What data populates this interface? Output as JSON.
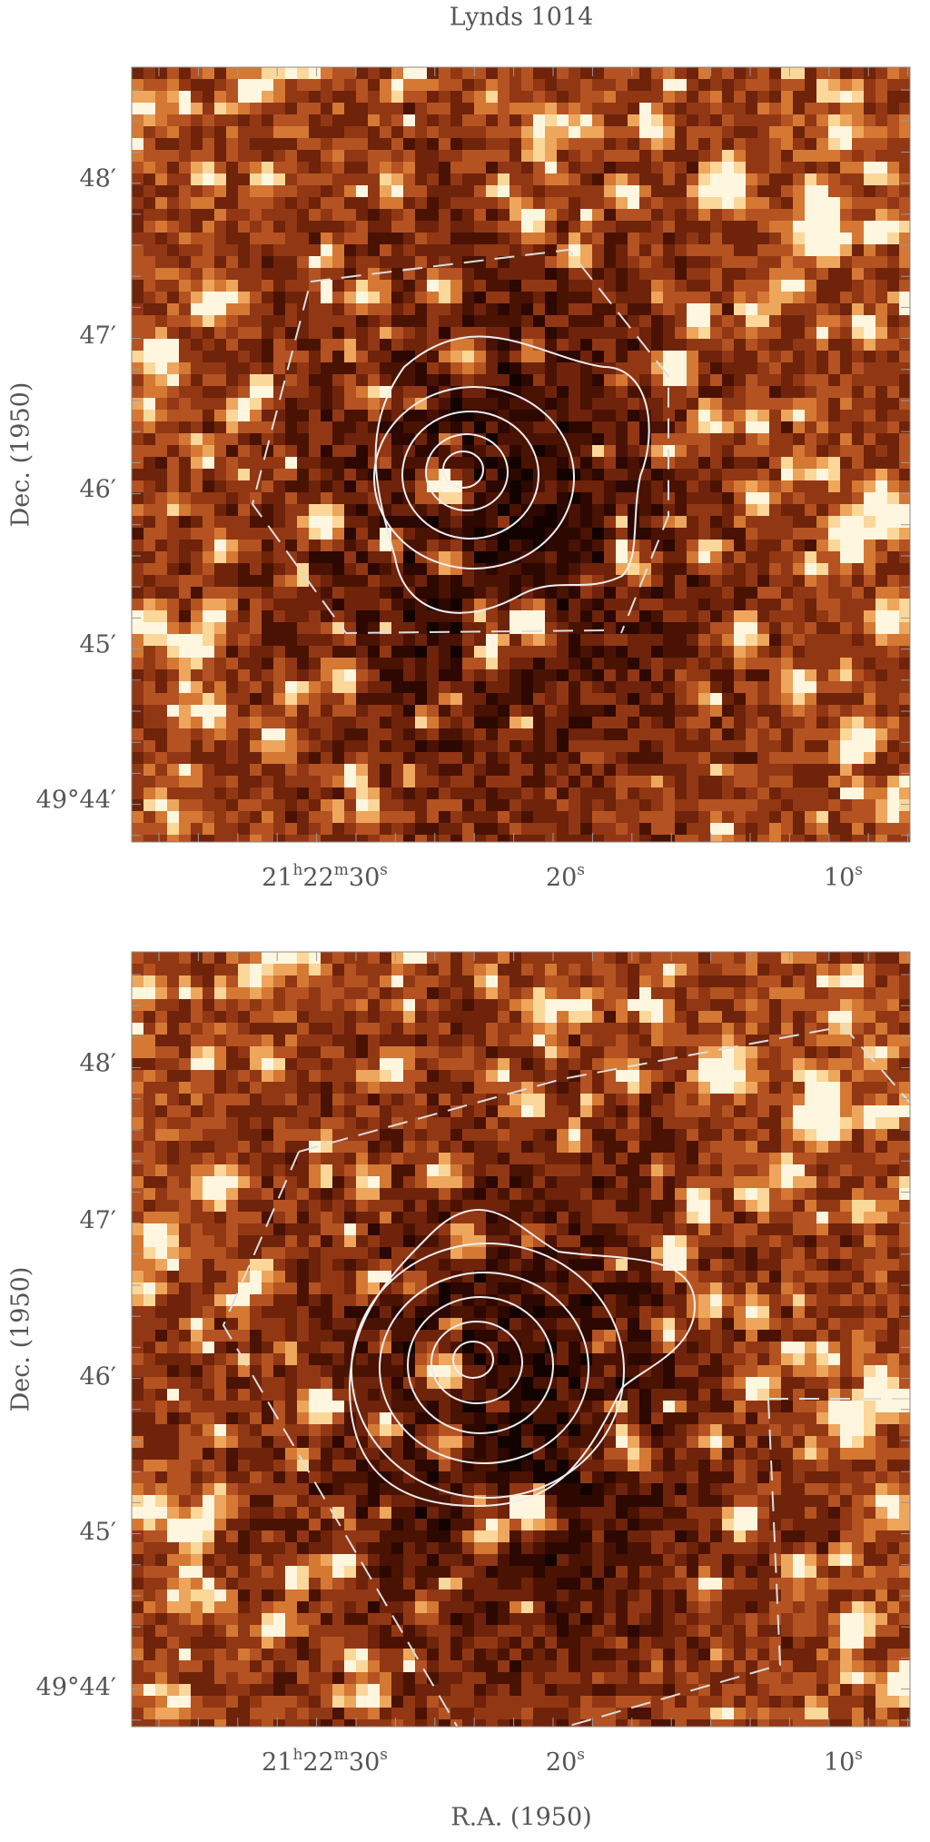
{
  "title": "Lynds 1014",
  "panels": [
    {
      "y_axis_label": "Dec. (1950)",
      "y_tick_labels": [
        "48′",
        "47′",
        "46′",
        "45′",
        "49°44′"
      ],
      "x_tick_labels": [
        "21h22m30s",
        "20s",
        "10s"
      ]
    },
    {
      "y_axis_label": "Dec. (1950)",
      "y_tick_labels": [
        "48′",
        "47′",
        "46′",
        "45′",
        "49°44′"
      ],
      "x_tick_labels": [
        "21h22m30s",
        "20s",
        "10s"
      ]
    }
  ],
  "x_axis_label": "R.A. (1950)"
}
